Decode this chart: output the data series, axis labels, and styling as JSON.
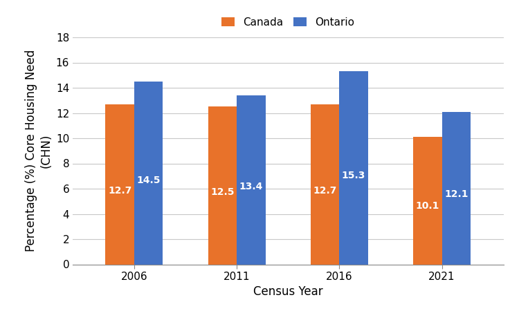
{
  "years": [
    "2006",
    "2011",
    "2016",
    "2021"
  ],
  "canada_values": [
    12.7,
    12.5,
    12.7,
    10.1
  ],
  "ontario_values": [
    14.5,
    13.4,
    15.3,
    12.1
  ],
  "canada_color": "#E8722A",
  "ontario_color": "#4472C4",
  "canada_label": "Canada",
  "ontario_label": "Ontario",
  "xlabel": "Census Year",
  "ylabel": "Percentage (%) Core Housing Need\n(CHN)",
  "ylim": [
    0,
    18
  ],
  "yticks": [
    0,
    2,
    4,
    6,
    8,
    10,
    12,
    14,
    16,
    18
  ],
  "bar_width": 0.28,
  "label_color": "white",
  "label_fontsize": 10,
  "axis_label_fontsize": 12,
  "tick_fontsize": 11,
  "legend_fontsize": 11,
  "background_color": "#ffffff",
  "grid_color": "#c8c8c8"
}
